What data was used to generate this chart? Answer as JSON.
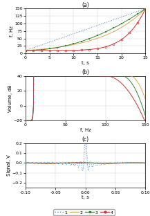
{
  "title_a": "(a)",
  "title_b": "(b)",
  "title_c": "(c)",
  "panel_a": {
    "xlabel": "t, s",
    "ylabel": "f, Hz",
    "xlim": [
      0,
      25
    ],
    "ylim": [
      0,
      150
    ],
    "xticks": [
      0,
      5,
      10,
      15,
      20,
      25
    ],
    "yticks": [
      0,
      25,
      50,
      75,
      100,
      125,
      150
    ]
  },
  "panel_b": {
    "xlabel": "f, Hz",
    "ylabel": "Volume, dB",
    "xlim": [
      0,
      150
    ],
    "ylim": [
      -20,
      40
    ],
    "xticks": [
      0,
      50,
      100,
      150
    ],
    "yticks": [
      -20,
      0,
      20,
      40
    ]
  },
  "panel_c": {
    "xlabel": "t, s",
    "ylabel": "Signal, V",
    "xlim": [
      -0.1,
      0.1
    ],
    "ylim": [
      -0.25,
      0.2
    ],
    "xticks": [
      -0.1,
      -0.05,
      0,
      0.05,
      0.1
    ],
    "yticks": [
      -0.2,
      -0.1,
      0,
      0.1,
      0.2
    ]
  },
  "colors": {
    "1": "#4488cc",
    "2": "#ddaa55",
    "3": "#338833",
    "4": "#cc3333"
  },
  "legend_labels": [
    "1",
    "2",
    "3",
    "4"
  ],
  "sweep_T": 25,
  "sweep_f1": 10,
  "sweep_f2": 150,
  "num_markers": 16
}
